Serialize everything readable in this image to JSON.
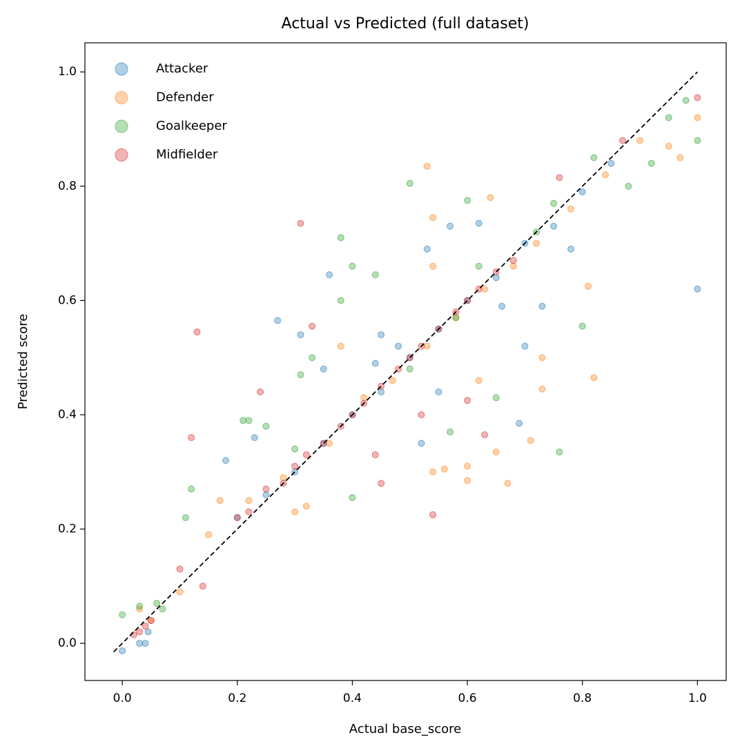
{
  "chart_data": {
    "type": "scatter",
    "title": "Actual vs Predicted (full dataset)",
    "x_label": "Actual base_score",
    "y_label": "Predicted score",
    "xlim": [
      -0.065,
      1.05
    ],
    "ylim": [
      -0.065,
      1.051
    ],
    "xticks": [
      {
        "value": 0,
        "label": "0.0"
      },
      {
        "value": 0.2,
        "label": "0.2"
      },
      {
        "value": 0.4,
        "label": "0.4"
      },
      {
        "value": 0.6,
        "label": "0.6"
      },
      {
        "value": 0.8,
        "label": "0.8"
      },
      {
        "value": 1,
        "label": "1.0"
      }
    ],
    "yticks": [
      {
        "value": 0,
        "label": "0.0"
      },
      {
        "value": 0.2,
        "label": "0.2"
      },
      {
        "value": 0.4,
        "label": "0.4"
      },
      {
        "value": 0.6,
        "label": "0.6"
      },
      {
        "value": 0.8,
        "label": "0.8"
      },
      {
        "value": 1,
        "label": "1.0"
      }
    ],
    "legend": "upper-left",
    "alpha": 0.35,
    "reference_line": {
      "x": [
        -0.015,
        1.0
      ],
      "y": [
        -0.015,
        1.0
      ],
      "color": "#000000"
    },
    "series": [
      {
        "name": "Attacker",
        "color": "#1f77b4",
        "x": [
          0.0,
          0.03,
          0.04,
          0.045,
          0.18,
          0.23,
          0.27,
          0.31,
          0.35,
          0.44,
          0.45,
          0.48,
          0.52,
          0.55,
          0.57,
          0.62,
          0.69,
          0.73,
          0.78,
          1.0,
          0.53,
          0.36,
          0.66,
          0.7,
          0.2,
          0.25,
          0.3,
          0.35,
          0.4,
          0.45,
          0.5,
          0.55,
          0.6,
          0.65,
          0.7,
          0.75,
          0.8,
          0.85
        ],
        "y": [
          -0.013,
          0.0,
          0.0,
          0.02,
          0.32,
          0.36,
          0.565,
          0.54,
          0.48,
          0.49,
          0.54,
          0.52,
          0.35,
          0.44,
          0.73,
          0.735,
          0.385,
          0.59,
          0.69,
          0.62,
          0.69,
          0.645,
          0.59,
          0.52,
          0.22,
          0.26,
          0.3,
          0.35,
          0.4,
          0.44,
          0.5,
          0.55,
          0.6,
          0.64,
          0.7,
          0.73,
          0.79,
          0.84
        ]
      },
      {
        "name": "Defender",
        "color": "#ff7f0e",
        "x": [
          0.53,
          0.54,
          0.64,
          0.54,
          0.6,
          0.62,
          0.65,
          0.71,
          0.73,
          0.73,
          0.82,
          0.81,
          0.67,
          0.54,
          0.56,
          0.6,
          0.38,
          0.95,
          0.97,
          1.0,
          0.03,
          0.05,
          0.1,
          0.15,
          0.17,
          0.3,
          0.32,
          0.22,
          0.28,
          0.36,
          0.42,
          0.47,
          0.53,
          0.58,
          0.63,
          0.68,
          0.72,
          0.78,
          0.84,
          0.9
        ],
        "y": [
          0.835,
          0.745,
          0.78,
          0.66,
          0.31,
          0.46,
          0.335,
          0.355,
          0.445,
          0.5,
          0.465,
          0.625,
          0.28,
          0.3,
          0.305,
          0.285,
          0.52,
          0.87,
          0.85,
          0.92,
          0.06,
          0.04,
          0.09,
          0.19,
          0.25,
          0.23,
          0.24,
          0.25,
          0.29,
          0.35,
          0.43,
          0.46,
          0.52,
          0.57,
          0.62,
          0.66,
          0.7,
          0.76,
          0.82,
          0.88
        ]
      },
      {
        "name": "Goalkeeper",
        "color": "#2ca02c",
        "x": [
          0.5,
          0.6,
          0.38,
          0.62,
          0.4,
          0.44,
          0.38,
          0.33,
          0.31,
          0.25,
          0.21,
          0.22,
          0.12,
          0.11,
          0.4,
          0.76,
          0.8,
          0.65,
          0.57,
          0.0,
          0.03,
          0.06,
          0.07,
          1.0,
          0.98,
          0.95,
          0.92,
          0.88,
          0.82,
          0.72,
          0.75,
          0.3,
          0.5,
          0.58
        ],
        "y": [
          0.805,
          0.775,
          0.71,
          0.66,
          0.66,
          0.645,
          0.6,
          0.5,
          0.47,
          0.38,
          0.39,
          0.39,
          0.27,
          0.22,
          0.255,
          0.335,
          0.555,
          0.43,
          0.37,
          0.05,
          0.065,
          0.07,
          0.06,
          0.88,
          0.95,
          0.92,
          0.84,
          0.8,
          0.85,
          0.72,
          0.77,
          0.34,
          0.48,
          0.57
        ]
      },
      {
        "name": "Midfielder",
        "color": "#d62728",
        "x": [
          0.31,
          0.13,
          0.12,
          0.33,
          0.24,
          0.44,
          0.54,
          0.52,
          0.45,
          0.63,
          0.6,
          0.76,
          1.0,
          0.02,
          0.03,
          0.04,
          0.05,
          0.1,
          0.14,
          0.2,
          0.22,
          0.25,
          0.28,
          0.3,
          0.32,
          0.35,
          0.38,
          0.4,
          0.42,
          0.45,
          0.48,
          0.5,
          0.52,
          0.55,
          0.58,
          0.6,
          0.62,
          0.65,
          0.68,
          0.87
        ],
        "y": [
          0.735,
          0.545,
          0.36,
          0.555,
          0.44,
          0.33,
          0.225,
          0.4,
          0.28,
          0.365,
          0.425,
          0.815,
          0.955,
          0.015,
          0.02,
          0.03,
          0.04,
          0.13,
          0.1,
          0.22,
          0.23,
          0.27,
          0.28,
          0.31,
          0.33,
          0.35,
          0.38,
          0.4,
          0.42,
          0.45,
          0.48,
          0.5,
          0.52,
          0.55,
          0.58,
          0.6,
          0.62,
          0.65,
          0.67,
          0.88
        ]
      }
    ]
  }
}
